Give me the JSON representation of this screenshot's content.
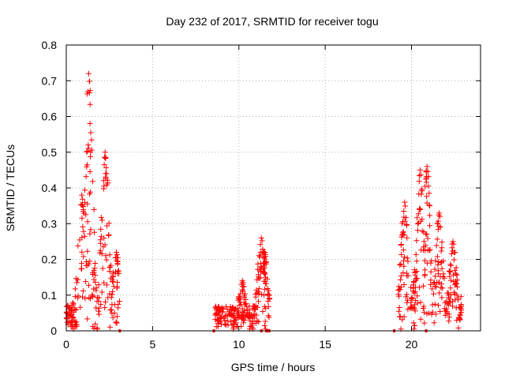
{
  "chart_data": {
    "type": "scatter",
    "title": "Day 232 of 2017, SRMTID for receiver togu",
    "xlabel": "GPS time / hours",
    "ylabel": "SRMTID / TECUs",
    "xlim": [
      0,
      24
    ],
    "ylim": [
      0,
      0.8
    ],
    "xticks": [
      0,
      5,
      10,
      15,
      20
    ],
    "yticks": [
      0,
      0.1,
      0.2,
      0.3,
      0.4,
      0.5,
      0.6,
      0.7,
      0.8
    ],
    "xtick_labels": [
      "0",
      "5",
      "10",
      "15",
      "20"
    ],
    "ytick_labels": [
      "0",
      "0.1",
      "0.2",
      "0.3",
      "0.4",
      "0.5",
      "0.6",
      "0.7",
      "0.8"
    ],
    "grid": true,
    "marker": "+",
    "color": "#ff0000",
    "series": [
      {
        "name": "SRMTID",
        "clusters": [
          {
            "x_start": 0.0,
            "x_end": 3.1,
            "base": 0.08,
            "peaks": [
              [
                1.3,
                0.72
              ],
              [
                2.25,
                0.5
              ],
              [
                0.9,
                0.38
              ],
              [
                2.9,
                0.22
              ]
            ]
          },
          {
            "x_start": 8.6,
            "x_end": 11.8,
            "base": 0.07,
            "peaks": [
              [
                11.3,
                0.26
              ],
              [
                11.5,
                0.22
              ],
              [
                10.2,
                0.14
              ]
            ]
          },
          {
            "x_start": 19.2,
            "x_end": 22.9,
            "base": 0.1,
            "peaks": [
              [
                20.9,
                0.46
              ],
              [
                20.5,
                0.45
              ],
              [
                21.6,
                0.33
              ],
              [
                19.6,
                0.36
              ],
              [
                22.4,
                0.25
              ]
            ]
          }
        ],
        "zero_markers": [
          3.1,
          8.55,
          11.3,
          11.6,
          11.75,
          19.0,
          20.85
        ]
      }
    ]
  }
}
